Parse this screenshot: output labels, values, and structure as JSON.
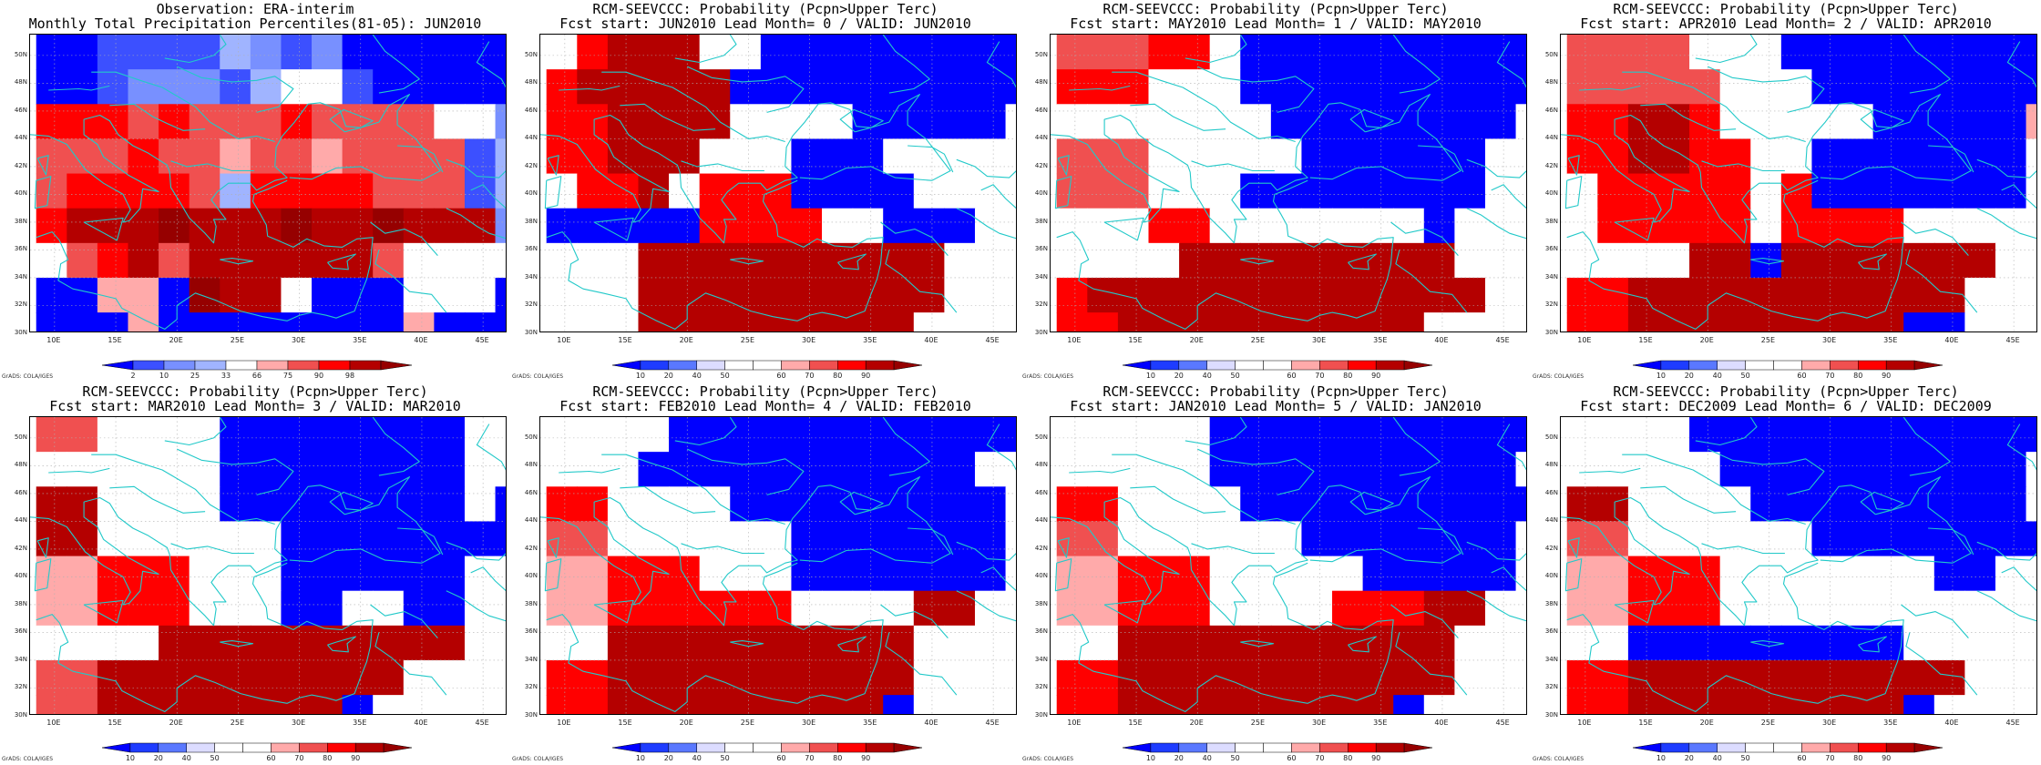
{
  "figure": {
    "credit": "GrADS: COLA/IGES",
    "lat_labels": [
      "50N",
      "48N",
      "46N",
      "44N",
      "42N",
      "40N",
      "38N",
      "36N",
      "34N",
      "32N",
      "30N"
    ],
    "lon_labels": [
      "10E",
      "15E",
      "20E",
      "25E",
      "30E",
      "35E",
      "40E",
      "45E"
    ],
    "map_extent": {
      "lon": [
        8,
        47
      ],
      "lat": [
        30,
        51.5
      ]
    }
  },
  "colors": {
    "coast": "#22c9c9",
    "grid": "#b0b0b0",
    "prob_scale": [
      "#0000ff",
      "#1e3cff",
      "#5a78ff",
      "#dcdcff",
      "#ffffff",
      "#ffffff",
      "#ffaaaa",
      "#f05050",
      "#ff0000",
      "#b40000",
      "#960000"
    ],
    "obs_scale": [
      "#0000ff",
      "#3c50ff",
      "#7890ff",
      "#a0b4ff",
      "#ffffff",
      "#ffaaaa",
      "#f05050",
      "#ff0000",
      "#b40000",
      "#960000"
    ]
  },
  "panels": [
    {
      "title1": "Observation: ERA-interim",
      "title2": "Monthly Total Precipitation Percentiles(81-05): JUN2010",
      "scale": "obs",
      "colorbar_labels": [
        "2",
        "10",
        "25",
        "33",
        "66",
        "75",
        "90",
        "98"
      ],
      "grid": [
        "0011113212000000",
        "0012221344100000",
        "7776766676666442",
        "6667665665666613",
        "6777763777766613",
        "7888988898898882",
        "4678688888864444",
        "0055098840004440",
        "0005000000005000"
      ]
    },
    {
      "title1": "RCM-SEEVCCC: Probability (Pcpn>Upper Terc)",
      "title2": "Fcst start: JUN2010  Lead Month= 0 / VALID: JUN2010",
      "scale": "prob",
      "colorbar_labels": [
        "10",
        "20",
        "40",
        "50",
        "60",
        "70",
        "80",
        "90"
      ],
      "grid": [
        "4899944000000000",
        "8999990000000000",
        "8899994444000004",
        "8899944400044444",
        "4889488800004444",
        "0000088884400044",
        "4449999999999444",
        "4449999999999444",
        "4449999999994444"
      ]
    },
    {
      "title1": "RCM-SEEVCCC: Probability (Pcpn>Upper Terc)",
      "title2": "Fcst start: MAY2010  Lead Month= 1 / VALID: MAY2010",
      "scale": "prob",
      "colorbar_labels": [
        "10",
        "20",
        "40",
        "50",
        "60",
        "70",
        "80",
        "90"
      ],
      "grid": [
        "7778840000000000",
        "8884440000000000",
        "4444444000000004",
        "7774444400000044",
        "7774440000000044",
        "4448844444440444",
        "4444999999999444",
        "8999999999999944",
        "8899999999994444"
      ]
    },
    {
      "title1": "RCM-SEEVCCC: Probability (Pcpn>Upper Terc)",
      "title2": "Fcst start: APR2010  Lead Month= 2 / VALID: APR2010",
      "scale": "prob",
      "colorbar_labels": [
        "10",
        "20",
        "40",
        "50",
        "60",
        "70",
        "80",
        "90"
      ],
      "grid": [
        "7777444000000000",
        "7777744400000000",
        "8899844444000006",
        "8899884400000004",
        "4888884800000004",
        "4888884888844444",
        "4444990999999944",
        "8899999999999444",
        "8899999999900444"
      ]
    },
    {
      "title1": "RCM-SEEVCCC: Probability (Pcpn>Upper Terc)",
      "title2": "Fcst start: MAR2010  Lead Month= 3 / VALID: MAR2010",
      "scale": "prob",
      "colorbar_labels": [
        "10",
        "20",
        "40",
        "50",
        "60",
        "70",
        "80",
        "90"
      ],
      "grid": [
        "7744440000000044",
        "4444440000000044",
        "9944440000000040",
        "9944444400000000",
        "6688844400000044",
        "6688844400440044",
        "4444999999999944",
        "7799999999994444",
        "7799999999044444"
      ]
    },
    {
      "title1": "RCM-SEEVCCC: Probability (Pcpn>Upper Terc)",
      "title2": "Fcst start: FEB2010  Lead Month= 4 / VALID: FEB2010",
      "scale": "prob",
      "colorbar_labels": [
        "10",
        "20",
        "40",
        "50",
        "60",
        "70",
        "80",
        "90"
      ],
      "grid": [
        "4444000000000000",
        "4440000000000044",
        "8844440000000004",
        "7744444400000004",
        "6688844400000004",
        "6688888844449944",
        "4499999999994444",
        "8899999999994444",
        "8899999999904444"
      ]
    },
    {
      "title1": "RCM-SEEVCCC: Probability (Pcpn>Upper Terc)",
      "title2": "Fcst start: JAN2010  Lead Month= 5 / VALID: JAN2010",
      "scale": "prob",
      "colorbar_labels": [
        "10",
        "20",
        "40",
        "50",
        "60",
        "70",
        "80",
        "90"
      ],
      "grid": [
        "4444400000000000",
        "4444400000000004",
        "8844440000000000",
        "7744444400000004",
        "6688844444000004",
        "6688844448889944",
        "4499999999999444",
        "8899999999999444",
        "8899999999904444"
      ]
    },
    {
      "title1": "RCM-SEEVCCC: Probability (Pcpn>Upper Terc)",
      "title2": "Fcst start: DEC2009  Lead Month= 6 / VALID: DEC2009",
      "scale": "prob",
      "colorbar_labels": [
        "10",
        "20",
        "40",
        "50",
        "60",
        "70",
        "80",
        "90"
      ],
      "grid": [
        "4444000000000000",
        "4444400000000004",
        "9944440000000004",
        "7744444400000000",
        "6688844444440044",
        "6688844444444444",
        "4400000000044444",
        "8899999999999444",
        "8899999999904444"
      ]
    }
  ]
}
